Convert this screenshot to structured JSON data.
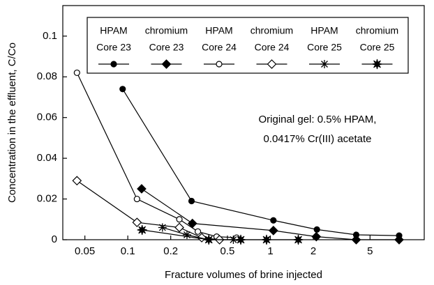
{
  "chart_data": {
    "type": "line",
    "x_label": "Fracture volumes of brine injected",
    "y_label": "Concentration in the effluent, C/Co",
    "annotations": [
      "Original gel: 0.5% HPAM,",
      "0.0417% Cr(III) acetate"
    ],
    "x_scale": "log",
    "xlim": [
      0.035,
      12
    ],
    "xticks": [
      0.05,
      0.1,
      0.2,
      0.5,
      1,
      2,
      5
    ],
    "ylim": [
      0,
      0.115
    ],
    "yticks": [
      0,
      0.02,
      0.04,
      0.06,
      0.08,
      0.1
    ],
    "series": [
      {
        "name": [
          "HPAM",
          "Core 23"
        ],
        "color": "#000000",
        "marker": "circle",
        "filled": true,
        "x": [
          0.092,
          0.28,
          1.05,
          2.12,
          4.0,
          8.0
        ],
        "values": [
          0.074,
          0.019,
          0.0095,
          0.005,
          0.0024,
          0.002
        ]
      },
      {
        "name": [
          "chromium",
          "Core 23"
        ],
        "color": "#000000",
        "marker": "diamond",
        "filled": true,
        "x": [
          0.125,
          0.284,
          1.05,
          2.1,
          4.0,
          8.0
        ],
        "values": [
          0.025,
          0.008,
          0.0045,
          0.0015,
          0,
          0
        ]
      },
      {
        "name": [
          "HPAM",
          "Core 24"
        ],
        "color": "#000000",
        "marker": "circle",
        "filled": false,
        "x": [
          0.044,
          0.116,
          0.23,
          0.31,
          0.42,
          0.58
        ],
        "values": [
          0.082,
          0.02,
          0.01,
          0.004,
          0.0015,
          0.001
        ]
      },
      {
        "name": [
          "chromium",
          "Core 24"
        ],
        "color": "#000000",
        "marker": "diamond",
        "filled": false,
        "x": [
          0.044,
          0.116,
          0.23,
          0.33,
          0.44
        ],
        "values": [
          0.029,
          0.0085,
          0.006,
          0.001,
          0
        ]
      },
      {
        "name": [
          "HPAM",
          "Core 25"
        ],
        "color": "#000000",
        "marker": "asterisk",
        "filled": false,
        "x": [
          0.175,
          0.26,
          0.37,
          0.55
        ],
        "values": [
          0.006,
          0.0024,
          0,
          0
        ]
      },
      {
        "name": [
          "chromium",
          "Core 25"
        ],
        "color": "#000000",
        "marker": "star",
        "filled": true,
        "x": [
          0.126,
          0.37,
          0.62,
          0.94,
          1.57
        ],
        "values": [
          0.0048,
          0,
          0,
          0,
          0
        ]
      }
    ]
  }
}
